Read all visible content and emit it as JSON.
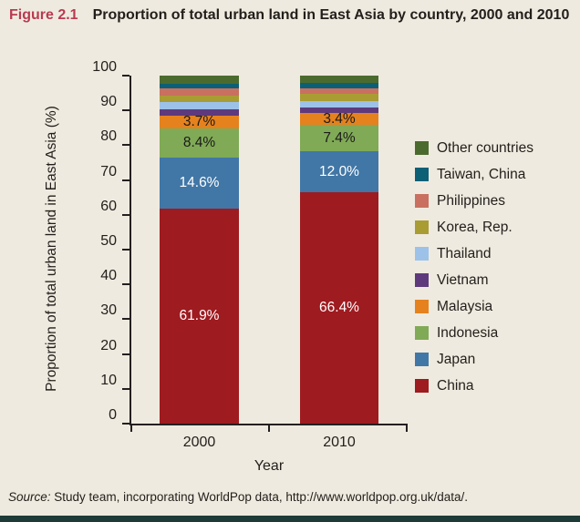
{
  "title": {
    "figure_label": "Figure 2.1",
    "text": "Proportion of total urban land in East Asia by country, 2000 and 2010"
  },
  "source": {
    "prefix": "Source:",
    "text": " Study team, incorporating WorldPop data, http://www.worldpop.org.uk/data/."
  },
  "colors": {
    "background": "#efeadf",
    "figure_label_red": "#b93a50",
    "axis": "#231f20",
    "bottom_bar": "#1e3b37"
  },
  "chart_data": {
    "type": "bar",
    "stacked": true,
    "title": "Proportion of total urban land in East Asia by country, 2000 and 2010",
    "categories": [
      "2000",
      "2010"
    ],
    "xlabel": "Year",
    "ylabel": "Proportion of total urban land in East Asia (%)",
    "ylim": [
      0,
      100
    ],
    "yticks": [
      0,
      10,
      20,
      30,
      40,
      50,
      60,
      70,
      80,
      90,
      100
    ],
    "grid": false,
    "legend_position": "right",
    "series": [
      {
        "name": "China",
        "color": "#9e1b20",
        "values": [
          61.9,
          66.4
        ],
        "data_labels": [
          "61.9%",
          "66.4%"
        ],
        "label_color": "#ffffff"
      },
      {
        "name": "Japan",
        "color": "#4177a6",
        "values": [
          14.6,
          12.0
        ],
        "data_labels": [
          "14.6%",
          "12.0%"
        ],
        "label_color": "#ffffff"
      },
      {
        "name": "Indonesia",
        "color": "#80aa56",
        "values": [
          8.4,
          7.4
        ],
        "data_labels": [
          "8.4%",
          "7.4%"
        ],
        "label_color": "#1a1a1a"
      },
      {
        "name": "Malaysia",
        "color": "#e5821e",
        "values": [
          3.7,
          3.4
        ],
        "data_labels": [
          "3.7%",
          "3.4%"
        ],
        "label_color": "#1a1a1a"
      },
      {
        "name": "Vietnam",
        "color": "#5e3a7d",
        "values": [
          1.6,
          1.6
        ]
      },
      {
        "name": "Thailand",
        "color": "#9cc2ea",
        "values": [
          2.2,
          2.0
        ]
      },
      {
        "name": "Korea, Rep.",
        "color": "#a99c33",
        "values": [
          1.9,
          1.9
        ]
      },
      {
        "name": "Philippines",
        "color": "#c97060",
        "values": [
          2.0,
          1.7
        ]
      },
      {
        "name": "Taiwan, China",
        "color": "#0c6076",
        "values": [
          1.4,
          1.4
        ]
      },
      {
        "name": "Other countries",
        "color": "#4b6b2e",
        "values": [
          2.3,
          2.2
        ]
      }
    ]
  }
}
